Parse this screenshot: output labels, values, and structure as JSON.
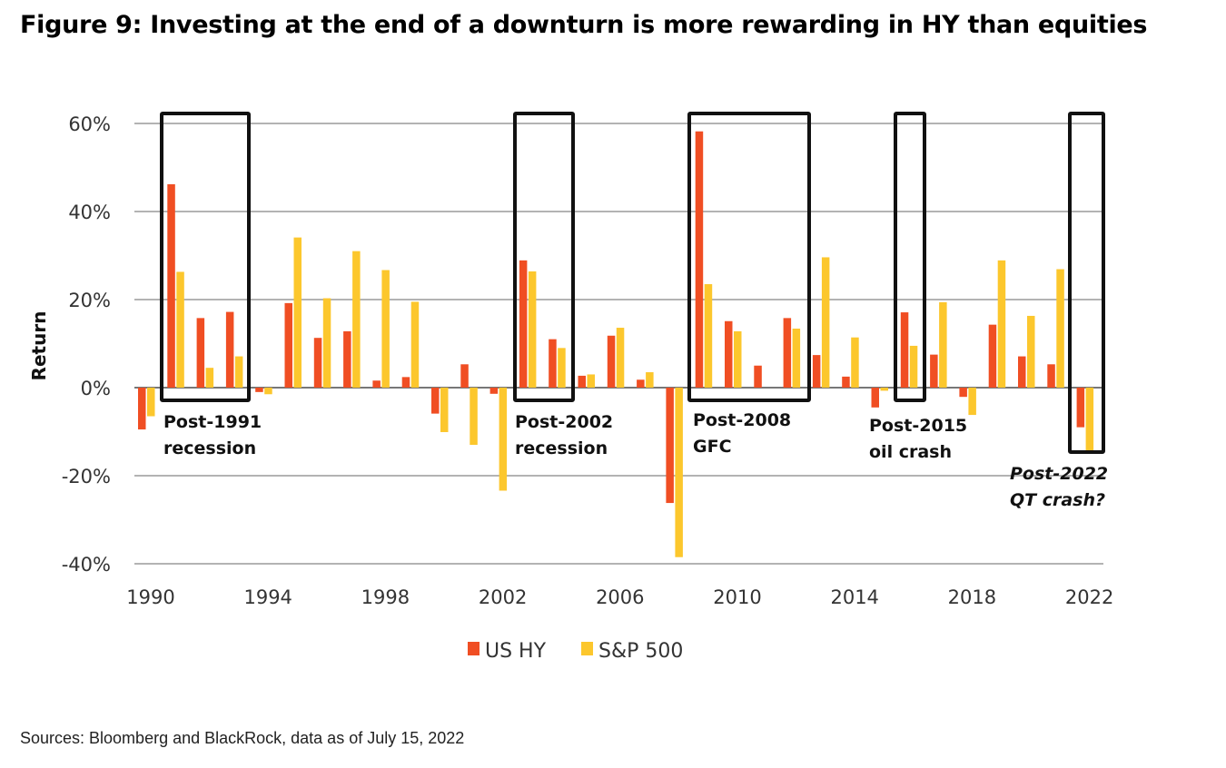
{
  "title": "Figure 9: Investing at the end of a downturn is more rewarding in HY than equities",
  "source": "Sources: Bloomberg and BlackRock, data as of July 15, 2022",
  "chart_data": {
    "type": "bar",
    "title": "Figure 9: Investing at the end of a downturn is more rewarding in HY than equities",
    "xlabel": "",
    "ylabel": "Return",
    "ylim": [
      -40,
      60
    ],
    "yticks": [
      60,
      40,
      20,
      0,
      -20,
      -40
    ],
    "ytick_labels": [
      "60%",
      "40%",
      "20%",
      "0%",
      "-20%",
      "-40%"
    ],
    "xtick_labels": [
      "1990",
      "1994",
      "1998",
      "2002",
      "2006",
      "2010",
      "2014",
      "2018",
      "2022"
    ],
    "grid": true,
    "legend_position": "bottom",
    "categories": [
      1990,
      1991,
      1992,
      1993,
      1994,
      1995,
      1996,
      1997,
      1998,
      1999,
      2000,
      2001,
      2002,
      2003,
      2004,
      2005,
      2006,
      2007,
      2008,
      2009,
      2010,
      2011,
      2012,
      2013,
      2014,
      2015,
      2016,
      2017,
      2018,
      2019,
      2020,
      2021,
      2022
    ],
    "series": [
      {
        "name": "US HY",
        "color": "#f04e23",
        "values": [
          -9.5,
          46.2,
          15.8,
          17.2,
          -1.0,
          19.2,
          11.3,
          12.8,
          1.6,
          2.4,
          -5.9,
          5.3,
          -1.4,
          28.9,
          11.0,
          2.7,
          11.8,
          1.8,
          -26.2,
          58.2,
          15.1,
          5.0,
          15.8,
          7.4,
          2.5,
          -4.5,
          17.1,
          7.5,
          -2.1,
          14.3,
          7.1,
          5.3,
          -9.0
        ]
      },
      {
        "name": "S&P 500",
        "color": "#fcc72d",
        "values": [
          -6.5,
          26.3,
          4.5,
          7.1,
          -1.5,
          34.1,
          20.3,
          31.0,
          26.7,
          19.5,
          -10.1,
          -13.0,
          -23.4,
          26.4,
          9.0,
          3.0,
          13.6,
          3.5,
          -38.5,
          23.5,
          12.8,
          0.0,
          13.4,
          29.6,
          11.4,
          -0.7,
          9.5,
          19.4,
          -6.2,
          28.9,
          16.3,
          26.9,
          -14.5
        ]
      }
    ],
    "annotations": [
      {
        "label_lines": [
          "Post-1991",
          "recession"
        ],
        "years": [
          1991,
          1993
        ],
        "italic": false
      },
      {
        "label_lines": [
          "Post-2002",
          "recession"
        ],
        "years": [
          2003,
          2004
        ],
        "italic": false
      },
      {
        "label_lines": [
          "Post-2008",
          "GFC"
        ],
        "years": [
          2009,
          2012
        ],
        "italic": false
      },
      {
        "label_lines": [
          "Post-2015",
          "oil crash"
        ],
        "years": [
          2016,
          2016
        ],
        "italic": false
      },
      {
        "label_lines": [
          "Post-2022",
          "QT crash?"
        ],
        "years": [
          2022,
          2022
        ],
        "italic": true
      }
    ]
  }
}
